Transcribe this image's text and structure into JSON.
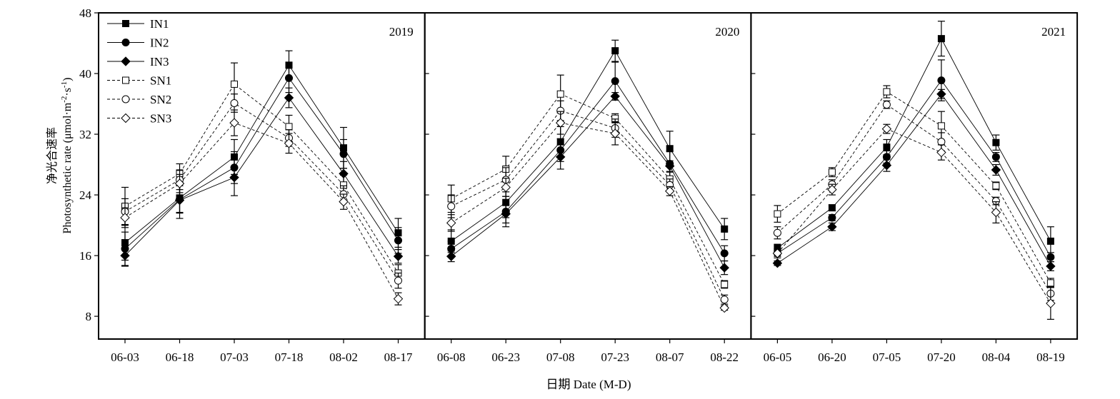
{
  "chart_data": {
    "type": "line",
    "ylabel_cn": "净光合速率",
    "ylabel_en": "Photosynthetic rate (μmol·m",
    "ylabel_sup1": "-2",
    "ylabel_mid": "·s",
    "ylabel_sup2": "-1",
    "ylabel_end": ")",
    "xlabel": "日期 Date (M-D)",
    "ylim": [
      5,
      48
    ],
    "yticks": [
      8,
      16,
      24,
      32,
      40,
      48
    ],
    "legend": {
      "placement": "top-left",
      "entries": [
        {
          "name": "IN1",
          "marker": "square",
          "filled": true,
          "dashed": false
        },
        {
          "name": "IN2",
          "marker": "circle",
          "filled": true,
          "dashed": false
        },
        {
          "name": "IN3",
          "marker": "diamond",
          "filled": true,
          "dashed": false
        },
        {
          "name": "SN1",
          "marker": "square",
          "filled": false,
          "dashed": true
        },
        {
          "name": "SN2",
          "marker": "circle",
          "filled": false,
          "dashed": true
        },
        {
          "name": "SN3",
          "marker": "diamond",
          "filled": false,
          "dashed": true
        }
      ]
    },
    "panels": [
      {
        "year": "2019",
        "categories": [
          "06-03",
          "06-18",
          "07-03",
          "07-18",
          "08-02",
          "08-17"
        ],
        "series": [
          {
            "name": "IN1",
            "values": [
              17.7,
              23.6,
              29.0,
              41.1,
              30.2,
              19.0
            ],
            "err": [
              2.3,
              1.9,
              2.3,
              1.9,
              2.7,
              1.9
            ]
          },
          {
            "name": "IN2",
            "values": [
              16.9,
              23.4,
              27.6,
              39.4,
              29.4,
              18.0
            ],
            "err": [
              2.2,
              1.8,
              2.1,
              1.9,
              1.9,
              1.7
            ]
          },
          {
            "name": "IN3",
            "values": [
              16.0,
              23.3,
              26.3,
              36.8,
              26.8,
              15.9
            ],
            "err": [
              1.4,
              2.4,
              2.4,
              1.3,
              1.6,
              0.9
            ]
          },
          {
            "name": "SN1",
            "values": [
              22.5,
              26.8,
              38.6,
              33.0,
              25.3,
              13.7
            ],
            "err": [
              2.5,
              1.3,
              2.8,
              1.5,
              1.3,
              1.1
            ]
          },
          {
            "name": "SN2",
            "values": [
              21.8,
              26.0,
              36.1,
              31.5,
              24.1,
              12.7
            ],
            "err": [
              1.7,
              1.3,
              1.2,
              1.1,
              1.1,
              1.0
            ]
          },
          {
            "name": "SN3",
            "values": [
              21.0,
              25.5,
              33.5,
              30.8,
              23.1,
              10.3
            ],
            "err": [
              1.3,
              1.2,
              1.7,
              1.3,
              1.0,
              0.8
            ]
          }
        ]
      },
      {
        "year": "2020",
        "categories": [
          "06-08",
          "06-23",
          "07-08",
          "07-23",
          "08-07",
          "08-22"
        ],
        "series": [
          {
            "name": "IN1",
            "values": [
              17.9,
              23.0,
              31.0,
              43.0,
              30.1,
              19.5
            ],
            "err": [
              1.5,
              2.0,
              2.0,
              1.4,
              2.3,
              1.4
            ]
          },
          {
            "name": "IN2",
            "values": [
              16.9,
              21.8,
              29.9,
              39.0,
              28.1,
              16.3
            ],
            "err": [
              1.0,
              2.0,
              1.5,
              2.5,
              1.7,
              1.0
            ]
          },
          {
            "name": "IN3",
            "values": [
              15.9,
              21.5,
              29.0,
              37.0,
              27.8,
              14.4
            ],
            "err": [
              0.7,
              1.2,
              1.6,
              0.5,
              0.7,
              0.9
            ]
          },
          {
            "name": "SN1",
            "values": [
              23.5,
              27.4,
              37.3,
              34.1,
              26.1,
              12.2
            ],
            "err": [
              1.8,
              1.7,
              2.5,
              0.6,
              0.9,
              0.5
            ]
          },
          {
            "name": "SN2",
            "values": [
              22.5,
              26.0,
              35.1,
              32.8,
              25.3,
              10.2
            ],
            "err": [
              1.5,
              1.6,
              1.3,
              1.2,
              0.8,
              0.6
            ]
          },
          {
            "name": "SN3",
            "values": [
              20.3,
              25.0,
              33.5,
              32.1,
              24.5,
              9.1
            ],
            "err": [
              1.1,
              1.2,
              1.5,
              1.5,
              0.6,
              0.3
            ]
          }
        ]
      },
      {
        "year": "2021",
        "categories": [
          "06-05",
          "06-20",
          "07-05",
          "07-20",
          "08-04",
          "08-19"
        ],
        "series": [
          {
            "name": "IN1",
            "values": [
              17.0,
              22.3,
              30.3,
              44.6,
              30.9,
              17.9
            ],
            "err": [
              0.5,
              0.4,
              1.0,
              2.3,
              1.0,
              1.9
            ]
          },
          {
            "name": "IN2",
            "values": [
              16.3,
              21.0,
              29.0,
              39.1,
              29.0,
              15.8
            ],
            "err": [
              0.4,
              0.4,
              0.8,
              2.7,
              0.6,
              0.6
            ]
          },
          {
            "name": "IN3",
            "values": [
              15.0,
              19.8,
              27.9,
              37.3,
              27.3,
              14.6
            ],
            "err": [
              0.3,
              0.5,
              0.8,
              0.6,
              0.7,
              0.6
            ]
          },
          {
            "name": "SN1",
            "values": [
              21.5,
              27.0,
              37.6,
              33.1,
              25.2,
              12.4
            ],
            "err": [
              1.1,
              0.6,
              0.8,
              1.9,
              0.5,
              0.6
            ]
          },
          {
            "name": "SN2",
            "values": [
              19.0,
              25.4,
              35.9,
              31.0,
              23.2,
              11.0
            ],
            "err": [
              0.8,
              0.6,
              0.5,
              1.2,
              0.5,
              0.9
            ]
          },
          {
            "name": "SN3",
            "values": [
              16.3,
              24.7,
              32.7,
              29.6,
              21.7,
              9.7
            ],
            "err": [
              0.6,
              0.7,
              0.6,
              1.0,
              1.4,
              2.1
            ]
          }
        ]
      }
    ]
  }
}
